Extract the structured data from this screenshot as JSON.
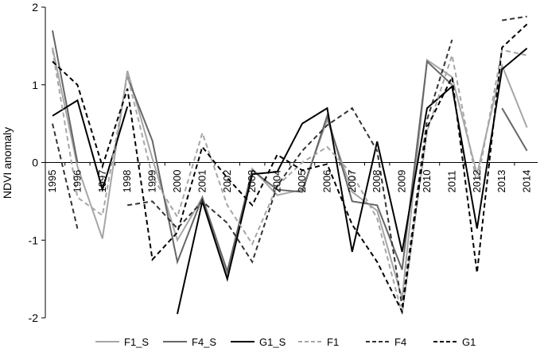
{
  "chart_data": {
    "type": "line",
    "title": "",
    "xlabel": "",
    "ylabel": "NDVI anomaly",
    "ylim": [
      -2,
      2
    ],
    "yticks": [
      -2,
      -1,
      0,
      1,
      2
    ],
    "grid": false,
    "legend_position": "bottom",
    "x": [
      "1995",
      "1996",
      "1997",
      "1998",
      "1999",
      "2000",
      "2001",
      "2002",
      "2003",
      "2004",
      "2005",
      "2006",
      "2007",
      "2008",
      "2009",
      "2010",
      "2011",
      "2012",
      "2013",
      "2014"
    ],
    "series": [
      {
        "name": "F1_S",
        "color": "#a6a6a6",
        "dash": "solid",
        "values": [
          1.48,
          -0.05,
          -0.98,
          1.18,
          0.05,
          -1.0,
          -0.45,
          -1.45,
          -0.08,
          -0.42,
          -0.35,
          0.55,
          -0.38,
          -0.62,
          -1.75,
          1.32,
          1.1,
          -0.15,
          1.25,
          0.45
        ]
      },
      {
        "name": "F4_S",
        "color": "#666666",
        "dash": "solid",
        "values": [
          1.7,
          0.0,
          null,
          1.1,
          0.28,
          -1.28,
          -0.45,
          -1.4,
          -0.1,
          -0.35,
          -0.38,
          0.6,
          -0.5,
          -0.55,
          -1.38,
          1.3,
          1.0,
          null,
          0.7,
          0.15
        ]
      },
      {
        "name": "G1_S",
        "color": "#000000",
        "dash": "solid",
        "values": [
          0.6,
          0.8,
          -0.35,
          0.72,
          null,
          -1.95,
          -0.5,
          -1.5,
          -0.15,
          -0.12,
          0.5,
          0.7,
          -1.15,
          0.27,
          -1.15,
          0.7,
          0.98,
          -0.85,
          1.2,
          1.47
        ]
      },
      {
        "name": "F1",
        "color": "#a6a6a6",
        "dash": "dashed",
        "values": [
          1.45,
          -0.45,
          -0.68,
          1.12,
          -0.18,
          -0.7,
          0.38,
          -0.55,
          -1.05,
          -0.3,
          0.0,
          0.2,
          -0.15,
          -0.72,
          -1.95,
          0.4,
          1.38,
          -0.28,
          1.45,
          1.38
        ]
      },
      {
        "name": "F4",
        "color": "#333333",
        "dash": "dashed",
        "values": [
          0.5,
          -0.85,
          null,
          -0.55,
          -0.5,
          -0.85,
          -0.5,
          -0.78,
          -1.28,
          -0.3,
          0.15,
          0.48,
          0.7,
          0.15,
          -1.85,
          0.55,
          1.58,
          null,
          1.83,
          1.88
        ]
      },
      {
        "name": "G1",
        "color": "#000000",
        "dash": "dashed",
        "values": [
          1.3,
          1.0,
          -0.05,
          0.95,
          -1.25,
          -0.9,
          0.2,
          -0.2,
          -0.55,
          0.1,
          -0.1,
          -0.02,
          -0.8,
          -1.28,
          -1.92,
          0.45,
          1.1,
          -1.42,
          1.48,
          1.78
        ]
      }
    ]
  }
}
